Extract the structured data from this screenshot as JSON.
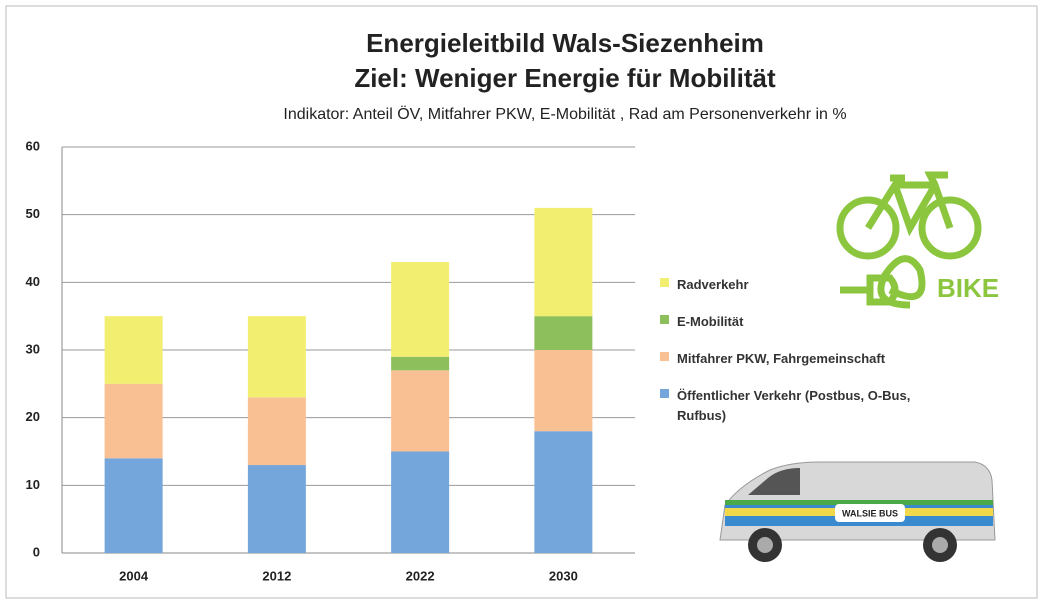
{
  "chart_data": {
    "type": "stacked_bar",
    "title": "Energieleitbild Wals-Siezenheim",
    "subtitle": "Ziel: Weniger Energie für Mobilität",
    "description": "Indikator:  Anteil ÖV, Mitfahrer PKW, E-Mobilität , Rad am Personenverkehr in %",
    "categories": [
      "2004",
      "2012",
      "2022",
      "2030"
    ],
    "series": [
      {
        "name": "Öffentlicher Verkehr (Postbus, O-Bus, Rufbus)",
        "color": "#74a6dc",
        "values": [
          14,
          13,
          15,
          18
        ]
      },
      {
        "name": "Mitfahrer PKW, Fahrgemeinschaft",
        "color": "#f9c094",
        "values": [
          11,
          10,
          12,
          12
        ]
      },
      {
        "name": "E-Mobilität",
        "color": "#8dbf5c",
        "values": [
          0,
          0,
          2,
          5
        ]
      },
      {
        "name": "Radverkehr",
        "color": "#f2ee70",
        "values": [
          10,
          12,
          14,
          16
        ]
      }
    ],
    "ylim": [
      0,
      60
    ],
    "yticks": [
      0,
      10,
      20,
      30,
      40,
      50,
      60
    ],
    "grid": true,
    "legend": "right",
    "logo_text": "BIKE",
    "van_label": "WALSIE BUS"
  }
}
